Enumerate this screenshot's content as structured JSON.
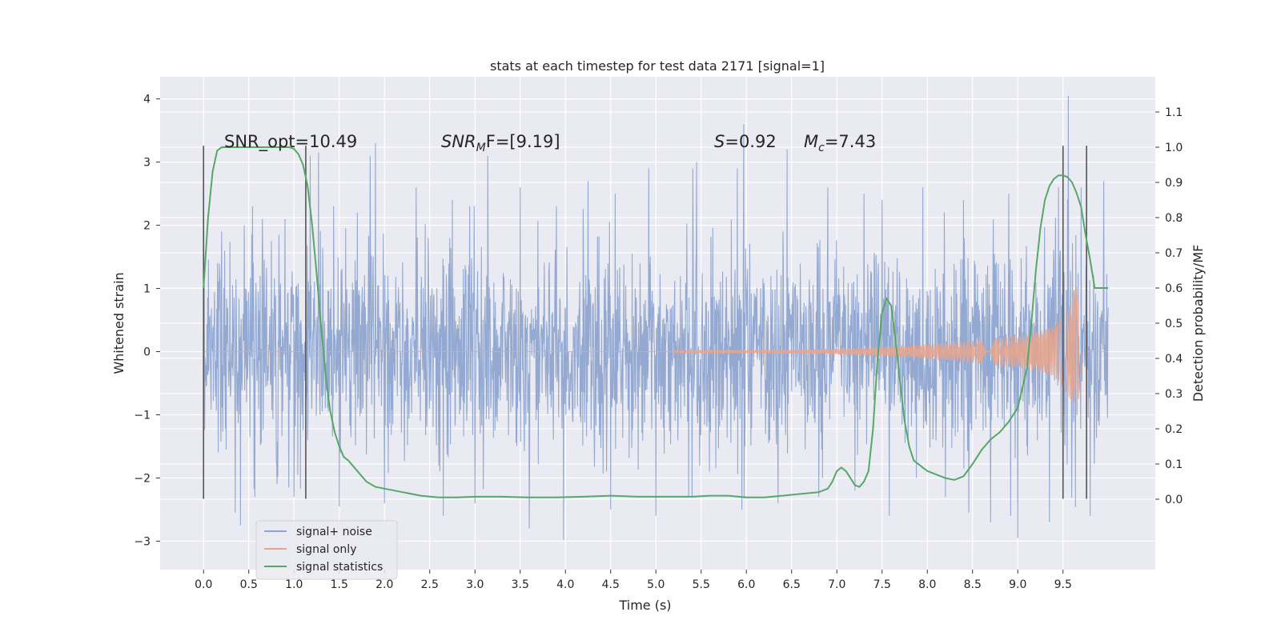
{
  "chart_data": {
    "type": "line",
    "title": "stats at each timestep for test data 2171 [signal=1]",
    "xlabel": "Time (s)",
    "ylabel": "Whitened strain",
    "ylabel_right": "Detection probability/MF",
    "xlim": [
      -0.48,
      10.52
    ],
    "ylim": [
      -3.45,
      4.35
    ],
    "ylim_right": [
      -0.2,
      1.2
    ],
    "x_ticks": [
      "0.0",
      "0.5",
      "1.0",
      "1.5",
      "2.0",
      "2.5",
      "3.0",
      "3.5",
      "4.0",
      "4.5",
      "5.0",
      "5.5",
      "6.0",
      "6.5",
      "7.0",
      "7.5",
      "8.0",
      "8.5",
      "9.0",
      "9.5"
    ],
    "y_ticks": [
      "4",
      "3",
      "2",
      "1",
      "0",
      "−1",
      "−2",
      "−3"
    ],
    "y_ticks_right": [
      "1.1",
      "1.0",
      "0.9",
      "0.8",
      "0.7",
      "0.6",
      "0.5",
      "0.4",
      "0.3",
      "0.2",
      "0.1",
      "0.0"
    ],
    "grid": true,
    "legend_position": "lower-left",
    "annotations": {
      "snr_opt": "SNR_opt=10.49",
      "snr_mf_prefix": "SNR",
      "snr_mf_sub": "M",
      "snr_mf_suffix": "F=[9.19]",
      "s_name": "S",
      "s_value": "=0.92",
      "mc_name": "M",
      "mc_sub": "c",
      "mc_value": "=7.43"
    },
    "vertical_markers": [
      0.0,
      1.13,
      9.5,
      9.76
    ],
    "series": [
      {
        "name": "signal+ noise",
        "color": "#8fa5cf",
        "x_range": [
          0.0,
          10.0
        ],
        "envelope_std": 0.78,
        "peaks": [
          [
            0.0,
            2.55
          ],
          [
            0.2,
            1.9
          ],
          [
            0.45,
            2.0
          ],
          [
            0.65,
            2.1
          ],
          [
            0.9,
            2.1
          ],
          [
            1.18,
            3.1
          ],
          [
            1.27,
            3.15
          ],
          [
            1.7,
            2.2
          ],
          [
            1.84,
            3.1
          ],
          [
            1.9,
            3.3
          ],
          [
            2.35,
            2.6
          ],
          [
            2.75,
            2.4
          ],
          [
            3.14,
            3.1
          ],
          [
            3.5,
            2.6
          ],
          [
            3.9,
            2.3
          ],
          [
            4.25,
            2.7
          ],
          [
            4.55,
            2.5
          ],
          [
            4.92,
            2.9
          ],
          [
            5.41,
            2.9
          ],
          [
            5.45,
            3.0
          ],
          [
            5.9,
            2.9
          ],
          [
            5.97,
            3.6
          ],
          [
            6.45,
            3.2
          ],
          [
            6.9,
            2.6
          ],
          [
            7.3,
            2.5
          ],
          [
            7.5,
            2.4
          ],
          [
            7.95,
            2.6
          ],
          [
            8.4,
            2.4
          ],
          [
            8.9,
            2.5
          ],
          [
            9.45,
            2.6
          ],
          [
            9.56,
            4.05
          ],
          [
            9.7,
            2.6
          ],
          [
            9.95,
            2.7
          ]
        ],
        "troughs": [
          [
            0.35,
            -2.55
          ],
          [
            0.41,
            -2.75
          ],
          [
            1.0,
            -2.3
          ],
          [
            1.5,
            -2.45
          ],
          [
            2.0,
            -2.4
          ],
          [
            2.65,
            -2.6
          ],
          [
            3.0,
            -2.4
          ],
          [
            3.6,
            -2.8
          ],
          [
            3.98,
            -2.98
          ],
          [
            4.5,
            -2.5
          ],
          [
            5.0,
            -2.6
          ],
          [
            5.4,
            -2.3
          ],
          [
            5.95,
            -2.5
          ],
          [
            6.35,
            -2.4
          ],
          [
            6.8,
            -2.3
          ],
          [
            7.2,
            -2.2
          ],
          [
            7.58,
            -2.6
          ],
          [
            8.2,
            -2.3
          ],
          [
            8.46,
            -2.55
          ],
          [
            8.7,
            -2.7
          ],
          [
            8.92,
            -2.6
          ],
          [
            9.0,
            -2.95
          ],
          [
            9.35,
            -2.7
          ],
          [
            9.8,
            -2.6
          ]
        ]
      },
      {
        "name": "signal only",
        "color": "#e9a58c",
        "chirp": {
          "start": 5.2,
          "peak": 9.65,
          "end": 9.72,
          "peak_amplitude": 1.1,
          "neg_amplitude": -1.2,
          "amplitude_at_start": 0.02
        }
      },
      {
        "name": "signal statistics",
        "color": "#55a868",
        "x": [
          0.0,
          0.05,
          0.1,
          0.15,
          0.2,
          0.3,
          0.5,
          0.8,
          0.95,
          1.0,
          1.05,
          1.1,
          1.15,
          1.2,
          1.25,
          1.3,
          1.35,
          1.4,
          1.45,
          1.5,
          1.55,
          1.6,
          1.7,
          1.8,
          1.9,
          2.0,
          2.2,
          2.4,
          2.6,
          2.8,
          3.0,
          3.3,
          3.6,
          3.9,
          4.2,
          4.5,
          4.8,
          5.1,
          5.4,
          5.6,
          5.8,
          6.0,
          6.2,
          6.4,
          6.6,
          6.8,
          6.9,
          6.95,
          7.0,
          7.05,
          7.1,
          7.15,
          7.2,
          7.25,
          7.3,
          7.35,
          7.4,
          7.45,
          7.5,
          7.55,
          7.6,
          7.65,
          7.7,
          7.75,
          7.8,
          7.85,
          7.9,
          7.95,
          8.0,
          8.1,
          8.2,
          8.3,
          8.4,
          8.5,
          8.6,
          8.7,
          8.8,
          8.9,
          9.0,
          9.1,
          9.15,
          9.2,
          9.25,
          9.3,
          9.35,
          9.4,
          9.45,
          9.5,
          9.55,
          9.6,
          9.65,
          9.7,
          9.75,
          9.8,
          9.85,
          9.9,
          9.95,
          10.0
        ],
        "values": [
          0.6,
          0.8,
          0.93,
          0.99,
          1.0,
          1.0,
          1.0,
          1.0,
          1.0,
          0.995,
          0.98,
          0.95,
          0.89,
          0.78,
          0.64,
          0.49,
          0.35,
          0.25,
          0.19,
          0.15,
          0.12,
          0.11,
          0.08,
          0.05,
          0.035,
          0.03,
          0.02,
          0.01,
          0.005,
          0.005,
          0.007,
          0.007,
          0.005,
          0.005,
          0.007,
          0.01,
          0.007,
          0.007,
          0.007,
          0.01,
          0.01,
          0.005,
          0.005,
          0.01,
          0.015,
          0.02,
          0.03,
          0.05,
          0.08,
          0.09,
          0.08,
          0.06,
          0.04,
          0.035,
          0.05,
          0.08,
          0.2,
          0.4,
          0.53,
          0.57,
          0.55,
          0.45,
          0.33,
          0.22,
          0.15,
          0.11,
          0.1,
          0.09,
          0.08,
          0.07,
          0.06,
          0.055,
          0.065,
          0.1,
          0.14,
          0.17,
          0.19,
          0.22,
          0.26,
          0.37,
          0.5,
          0.65,
          0.77,
          0.85,
          0.89,
          0.91,
          0.92,
          0.92,
          0.915,
          0.9,
          0.87,
          0.83,
          0.75,
          0.68,
          0.6,
          0.6,
          0.6,
          0.6
        ]
      }
    ]
  }
}
